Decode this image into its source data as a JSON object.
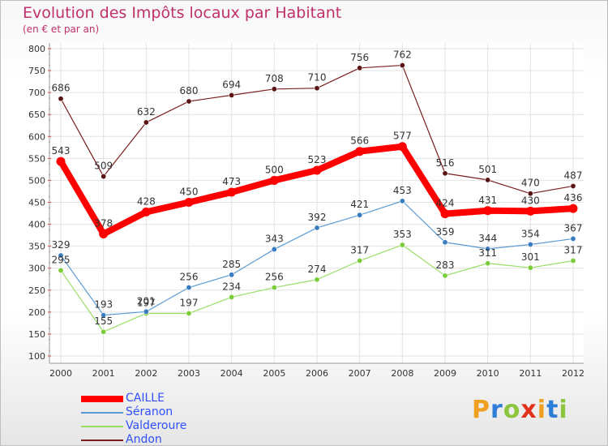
{
  "title": "Evolution des Impôts locaux par Habitant",
  "subtitle": "(en € et par an)",
  "logo": {
    "letters": [
      "P",
      "r",
      "o",
      "x",
      "i",
      "t",
      "i"
    ],
    "colors": [
      "#f0a020",
      "#2f7fd8",
      "#8cc63f",
      "#e0301e",
      "#f0a020",
      "#2f7fd8",
      "#8cc63f"
    ]
  },
  "chart_data": {
    "type": "line",
    "x": [
      "2000",
      "2001",
      "2002",
      "2003",
      "2004",
      "2005",
      "2006",
      "2007",
      "2008",
      "2009",
      "2010",
      "2011",
      "2012"
    ],
    "ylim": [
      100,
      800
    ],
    "yticks": [
      100,
      150,
      200,
      250,
      300,
      350,
      400,
      450,
      500,
      550,
      600,
      650,
      700,
      750,
      800
    ],
    "grid": true,
    "legend_position": "bottom-left",
    "series": [
      {
        "name": "Andon",
        "color": "#7a1f1f",
        "values": [
          686,
          509,
          632,
          680,
          694,
          708,
          710,
          756,
          762,
          516,
          501,
          470,
          487
        ]
      },
      {
        "name": "Valderoure",
        "color": "#99dd66",
        "values": [
          295,
          155,
          197,
          197,
          234,
          256,
          274,
          317,
          353,
          283,
          311,
          301,
          317
        ]
      },
      {
        "name": "Séranon",
        "color": "#5b9bd5",
        "values": [
          329,
          193,
          201,
          256,
          285,
          343,
          392,
          421,
          453,
          359,
          344,
          354,
          367
        ]
      },
      {
        "name": "CAILLE",
        "color": "#ff0000",
        "values": [
          543,
          378,
          428,
          450,
          473,
          500,
          523,
          566,
          577,
          424,
          431,
          430,
          436
        ]
      }
    ],
    "legend_order": [
      "CAILLE",
      "Séranon",
      "Valderoure",
      "Andon"
    ]
  }
}
